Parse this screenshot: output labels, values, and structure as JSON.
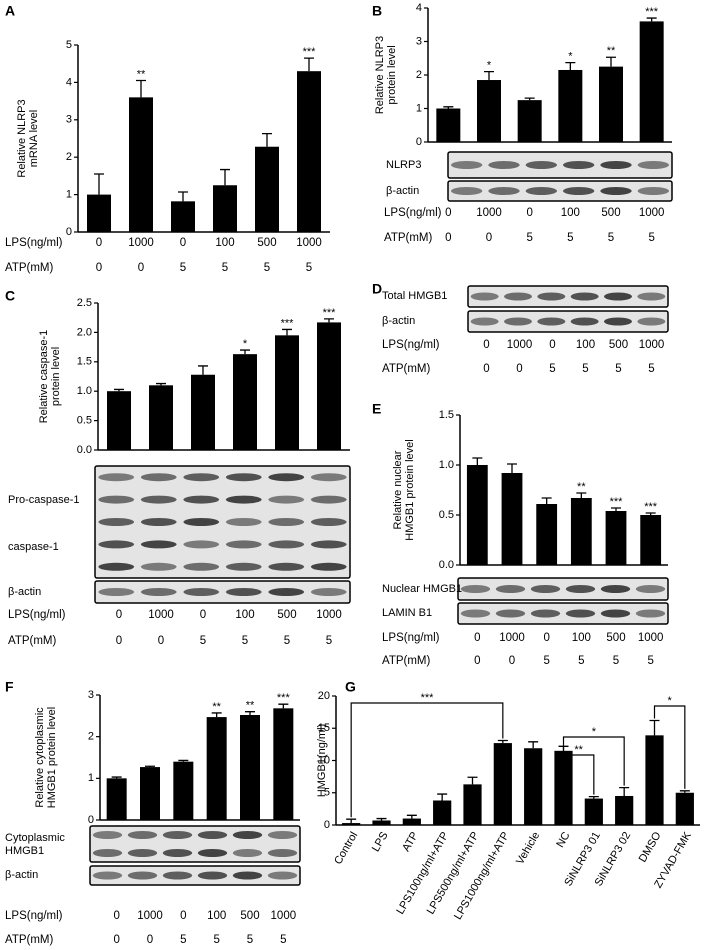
{
  "chart_data": [
    {
      "panel": "A",
      "type": "bar",
      "ylabel": [
        "Relative NLRP3",
        "mRNA level"
      ],
      "values": [
        1.0,
        3.6,
        0.82,
        1.25,
        2.28,
        4.3
      ],
      "errors": [
        0.55,
        0.45,
        0.25,
        0.42,
        0.35,
        0.35
      ],
      "significance": [
        null,
        "**",
        null,
        null,
        null,
        "***"
      ],
      "color": "#000000",
      "ylim": [
        0,
        5
      ],
      "yticks": [
        0,
        1,
        2,
        3,
        4,
        5
      ],
      "conditions": [
        {
          "label": "LPS(ng/ml)",
          "values": [
            "0",
            "1000",
            "0",
            "100",
            "500",
            "1000"
          ]
        },
        {
          "label": "ATP(mM)",
          "values": [
            "0",
            "0",
            "5",
            "5",
            "5",
            "5"
          ]
        }
      ]
    },
    {
      "panel": "B",
      "type": "bar",
      "ylabel": [
        "Relative NLRP3",
        "protein level"
      ],
      "values": [
        1.0,
        1.85,
        1.25,
        2.15,
        2.25,
        3.6
      ],
      "errors": [
        0.05,
        0.25,
        0.06,
        0.22,
        0.28,
        0.1
      ],
      "significance": [
        null,
        "*",
        null,
        "*",
        "**",
        "***"
      ],
      "color": "#000000",
      "ylim": [
        0,
        4
      ],
      "yticks": [
        0,
        1,
        2,
        3,
        4
      ],
      "blots": [
        [
          "NLRP3"
        ],
        [
          "β-actin"
        ]
      ],
      "conditions": [
        {
          "label": "LPS(ng/ml)",
          "values": [
            "0",
            "1000",
            "0",
            "100",
            "500",
            "1000"
          ]
        },
        {
          "label": "ATP(mM)",
          "values": [
            "0",
            "0",
            "5",
            "5",
            "5",
            "5"
          ]
        }
      ]
    },
    {
      "panel": "C",
      "type": "bar",
      "ylabel": [
        "Relative caspase-1",
        "protein level"
      ],
      "values": [
        1.0,
        1.1,
        1.28,
        1.63,
        1.95,
        2.17
      ],
      "errors": [
        0.03,
        0.03,
        0.15,
        0.07,
        0.1,
        0.06
      ],
      "significance": [
        null,
        null,
        null,
        "*",
        "***",
        "***"
      ],
      "color": "#000000",
      "ylim": [
        0,
        2.5
      ],
      "yticks": [
        {
          "value": 0,
          "label": "0.0"
        },
        0.5,
        {
          "value": 1,
          "label": "1.0"
        },
        1.5,
        {
          "value": 2,
          "label": "2.0"
        },
        2.5
      ],
      "blots": [
        [
          "Pro-caspase-1",
          "caspase-1"
        ],
        [
          "β-actin"
        ]
      ],
      "conditions": [
        {
          "label": "LPS(ng/ml)",
          "values": [
            "0",
            "1000",
            "0",
            "100",
            "500",
            "1000"
          ]
        },
        {
          "label": "ATP(mM)",
          "values": [
            "0",
            "0",
            "5",
            "5",
            "5",
            "5"
          ]
        }
      ]
    },
    {
      "panel": "D",
      "type": "blot",
      "blots": [
        [
          "Total HMGB1"
        ],
        [
          "β-actin"
        ]
      ],
      "conditions": [
        {
          "label": "LPS(ng/ml)",
          "values": [
            "0",
            "1000",
            "0",
            "100",
            "500",
            "1000"
          ]
        },
        {
          "label": "ATP(mM)",
          "values": [
            "0",
            "0",
            "5",
            "5",
            "5",
            "5"
          ]
        }
      ]
    },
    {
      "panel": "E",
      "type": "bar",
      "ylabel": [
        "Relative nuclear",
        "HMGB1 protein level"
      ],
      "values": [
        1.0,
        0.92,
        0.61,
        0.67,
        0.54,
        0.5
      ],
      "errors": [
        0.07,
        0.09,
        0.06,
        0.05,
        0.03,
        0.02
      ],
      "significance": [
        null,
        null,
        null,
        "**",
        "***",
        "***"
      ],
      "color": "#000000",
      "ylim": [
        0,
        1.5
      ],
      "yticks": [
        {
          "value": 0,
          "label": "0.0"
        },
        0.5,
        {
          "value": 1,
          "label": "1.0"
        },
        1.5
      ],
      "blots": [
        [
          "Nuclear HMGB1"
        ],
        [
          "LAMIN B1"
        ]
      ],
      "conditions": [
        {
          "label": "LPS(ng/ml)",
          "values": [
            "0",
            "1000",
            "0",
            "100",
            "500",
            "1000"
          ]
        },
        {
          "label": "ATP(mM)",
          "values": [
            "0",
            "0",
            "5",
            "5",
            "5",
            "5"
          ]
        }
      ]
    },
    {
      "panel": "F",
      "type": "bar",
      "ylabel": [
        "Relative cytoplasmic",
        "HMGB1 protein level"
      ],
      "values": [
        1.0,
        1.27,
        1.4,
        2.47,
        2.52,
        2.68
      ],
      "errors": [
        0.03,
        0.02,
        0.03,
        0.1,
        0.08,
        0.1
      ],
      "significance": [
        null,
        null,
        null,
        "**",
        "**",
        "***"
      ],
      "color": "#000000",
      "ylim": [
        0,
        3
      ],
      "yticks": [
        0,
        1,
        2,
        3
      ],
      "blots": [
        [
          "Cytoplasmic",
          "HMGB1"
        ],
        [
          "β-actin"
        ]
      ],
      "conditions": [
        {
          "label": "LPS(ng/ml)",
          "values": [
            "0",
            "1000",
            "0",
            "100",
            "500",
            "1000"
          ]
        },
        {
          "label": "ATP(mM)",
          "values": [
            "0",
            "0",
            "5",
            "5",
            "5",
            "5"
          ]
        }
      ]
    },
    {
      "panel": "G",
      "type": "bar",
      "ylabel": [
        "HMGB1(ng/ml)"
      ],
      "categories": [
        "Control",
        "LPS",
        "ATP",
        "LPS100ng/ml+ATP",
        "LPS500ng/ml+ATP",
        "LPS1000ng/ml+ATP",
        "Vehicle",
        "NC",
        "SiNLRP3 01",
        "SiNLRP3 02",
        "DMSO",
        "ZYVAD-FMK"
      ],
      "values": [
        0.3,
        0.7,
        1.0,
        3.8,
        6.3,
        12.7,
        11.9,
        11.5,
        4.1,
        4.5,
        13.9,
        5.0
      ],
      "errors": [
        0.6,
        0.3,
        0.5,
        1.0,
        1.1,
        0.4,
        1.0,
        0.7,
        0.3,
        1.3,
        2.3,
        0.3
      ],
      "color": "#000000",
      "ylim": [
        0,
        20
      ],
      "yticks": [
        0,
        5,
        10,
        15,
        20
      ],
      "comparisons": [
        {
          "from": 0,
          "to": 5,
          "label": "***"
        },
        {
          "from": 7,
          "to": 8,
          "label": "**"
        },
        {
          "from": 7,
          "to": 9,
          "label": "*"
        },
        {
          "from": 10,
          "to": 11,
          "label": "*"
        }
      ]
    }
  ]
}
